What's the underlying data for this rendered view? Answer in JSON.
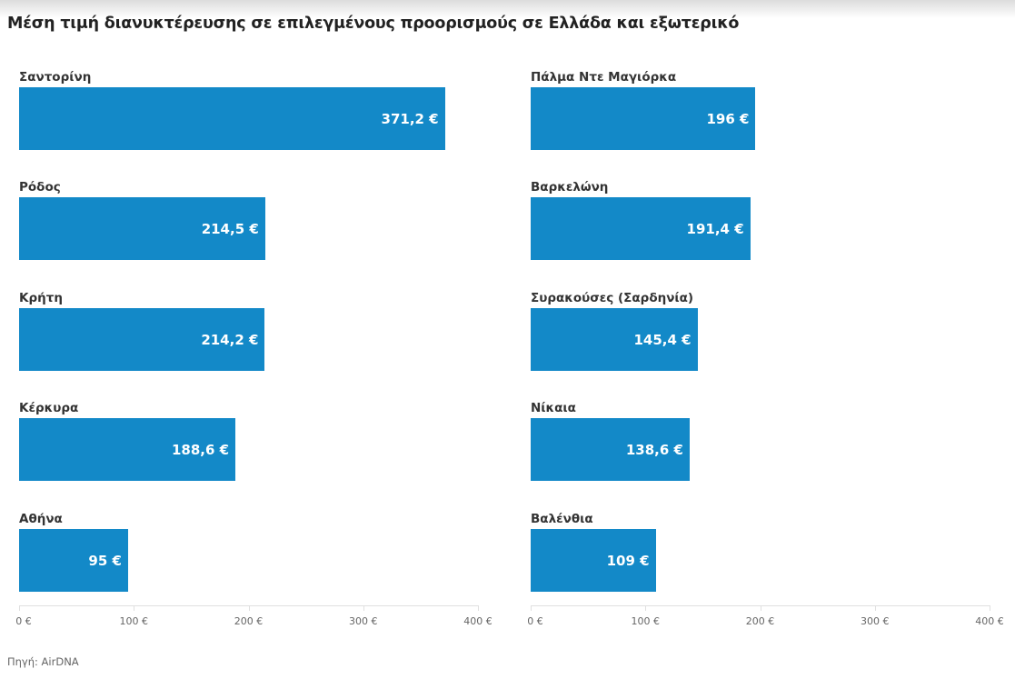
{
  "header": {
    "title": "Μέση τιμή διανυκτέρευσης σε επιλεγμένους προορισμούς σε Ελλάδα και εξωτερικό"
  },
  "footer": {
    "source": "Πηγή: AirDNA"
  },
  "colors": {
    "bar": "#1389c8",
    "label": "#333333",
    "axis": "#e0e0e0",
    "tick_text": "#666666"
  },
  "panels": [
    {
      "name": "greece",
      "rows": [
        {
          "label": "Σαντορίνη",
          "value": 371.2,
          "value_label": "371,2 €"
        },
        {
          "label": "Ρόδος",
          "value": 214.5,
          "value_label": "214,5 €"
        },
        {
          "label": "Κρήτη",
          "value": 214.2,
          "value_label": "214,2 €"
        },
        {
          "label": "Κέρκυρα",
          "value": 188.6,
          "value_label": "188,6 €"
        },
        {
          "label": "Αθήνα",
          "value": 95,
          "value_label": "95 €"
        }
      ],
      "ticks": [
        "0 €",
        "100 €",
        "200 €",
        "300 €",
        "400 €"
      ]
    },
    {
      "name": "abroad",
      "rows": [
        {
          "label": "Πάλμα Ντε Μαγιόρκα",
          "value": 196,
          "value_label": "196 €"
        },
        {
          "label": "Βαρκελώνη",
          "value": 191.4,
          "value_label": "191,4 €"
        },
        {
          "label": "Συρακούσες (Σαρδηνία)",
          "value": 145.4,
          "value_label": "145,4 €"
        },
        {
          "label": "Νίκαια",
          "value": 138.6,
          "value_label": "138,6 €"
        },
        {
          "label": "Βαλένθια",
          "value": 109,
          "value_label": "109 €"
        }
      ],
      "ticks": [
        "0 €",
        "100 €",
        "200 €",
        "300 €",
        "400 €"
      ]
    }
  ],
  "chart_data": [
    {
      "type": "bar",
      "orientation": "horizontal",
      "title": "Μέση τιμή διανυκτέρευσης σε επιλεγμένους προορισμούς σε Ελλάδα και εξωτερικό",
      "categories": [
        "Σαντορίνη",
        "Ρόδος",
        "Κρήτη",
        "Κέρκυρα",
        "Αθήνα"
      ],
      "values": [
        371.2,
        214.5,
        214.2,
        188.6,
        95
      ],
      "xlabel": "",
      "ylabel": "",
      "xlim": [
        0,
        400
      ],
      "xticks": [
        "0 €",
        "100 €",
        "200 €",
        "300 €",
        "400 €"
      ],
      "grid": false,
      "source": "Πηγή: AirDNA"
    },
    {
      "type": "bar",
      "orientation": "horizontal",
      "categories": [
        "Πάλμα Ντε Μαγιόρκα",
        "Βαρκελώνη",
        "Συρακούσες (Σαρδηνία)",
        "Νίκαια",
        "Βαλένθια"
      ],
      "values": [
        196,
        191.4,
        145.4,
        138.6,
        109
      ],
      "xlabel": "",
      "ylabel": "",
      "xlim": [
        0,
        400
      ],
      "xticks": [
        "0 €",
        "100 €",
        "200 €",
        "300 €",
        "400 €"
      ],
      "grid": false
    }
  ]
}
